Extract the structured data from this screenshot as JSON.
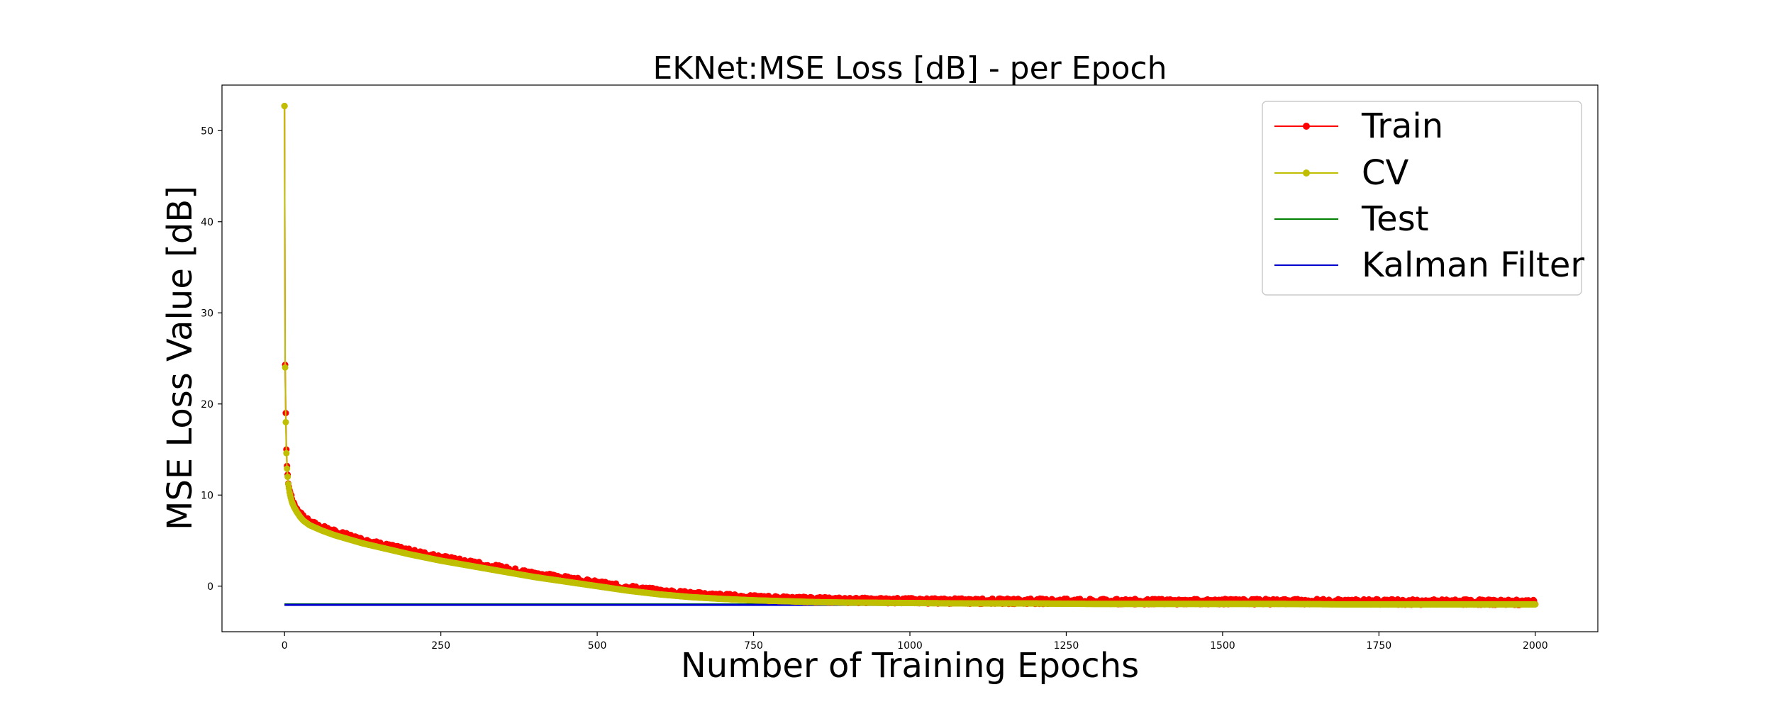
{
  "chart_data": {
    "type": "line",
    "title": "EKNet:MSE Loss [dB] - per Epoch",
    "xlabel": "Number of Training Epochs",
    "ylabel": "MSE Loss Value [dB]",
    "xlim": [
      -100,
      2100
    ],
    "ylim": [
      -5,
      55
    ],
    "xticks": [
      0,
      250,
      500,
      750,
      1000,
      1250,
      1500,
      1750,
      2000
    ],
    "yticks": [
      0,
      10,
      20,
      30,
      40,
      50
    ],
    "grid": false,
    "legend_position": "top-right",
    "series": [
      {
        "name": "Train",
        "color": "#ff0000",
        "marker": "circle",
        "noise": 0.3,
        "x": [
          0,
          1,
          2,
          3,
          4,
          5,
          6,
          8,
          10,
          12,
          15,
          20,
          25,
          30,
          40,
          50,
          60,
          80,
          100,
          125,
          150,
          175,
          200,
          250,
          300,
          350,
          400,
          450,
          500,
          550,
          600,
          650,
          700,
          750,
          800,
          850,
          900,
          1000,
          1100,
          1200,
          1300,
          1400,
          1500,
          1600,
          1700,
          1800,
          1900,
          2000
        ],
        "values": [
          52.7,
          24.3,
          19.0,
          15.0,
          13.2,
          12.2,
          11.5,
          10.6,
          10.0,
          9.5,
          9.0,
          8.4,
          7.9,
          7.5,
          7.0,
          6.7,
          6.4,
          5.9,
          5.5,
          5.0,
          4.6,
          4.2,
          3.8,
          3.1,
          2.5,
          1.9,
          1.3,
          0.8,
          0.3,
          -0.2,
          -0.6,
          -0.9,
          -1.1,
          -1.3,
          -1.4,
          -1.5,
          -1.55,
          -1.6,
          -1.65,
          -1.65,
          -1.7,
          -1.7,
          -1.7,
          -1.7,
          -1.7,
          -1.75,
          -1.75,
          -1.8
        ]
      },
      {
        "name": "CV",
        "color": "#bfbf00",
        "marker": "circle",
        "noise": 0,
        "x": [
          0,
          1,
          2,
          3,
          4,
          5,
          6,
          8,
          10,
          12,
          15,
          20,
          25,
          30,
          40,
          50,
          60,
          80,
          100,
          125,
          150,
          175,
          200,
          250,
          300,
          350,
          400,
          450,
          500,
          550,
          600,
          650,
          700,
          750,
          800,
          850,
          900,
          1000,
          1100,
          1200,
          1300,
          1400,
          1500,
          1600,
          1700,
          1800,
          1900,
          2000
        ],
        "values": [
          52.7,
          24.0,
          18.0,
          14.6,
          12.9,
          12.0,
          11.2,
          10.3,
          9.7,
          9.2,
          8.7,
          8.1,
          7.6,
          7.2,
          6.7,
          6.4,
          6.1,
          5.6,
          5.2,
          4.7,
          4.3,
          3.9,
          3.5,
          2.8,
          2.2,
          1.6,
          1.0,
          0.5,
          0.0,
          -0.5,
          -0.9,
          -1.2,
          -1.4,
          -1.55,
          -1.65,
          -1.75,
          -1.8,
          -1.85,
          -1.9,
          -1.9,
          -1.95,
          -1.95,
          -1.95,
          -1.95,
          -2.0,
          -2.0,
          -2.0,
          -2.0
        ]
      },
      {
        "name": "Test",
        "color": "#008000",
        "marker": "none",
        "x": [
          0,
          2000
        ],
        "values": [
          -2.0,
          -2.0
        ]
      },
      {
        "name": "Kalman Filter",
        "color": "#0000cc",
        "marker": "none",
        "x": [
          0,
          2000
        ],
        "values": [
          -2.05,
          -2.05
        ]
      }
    ]
  }
}
